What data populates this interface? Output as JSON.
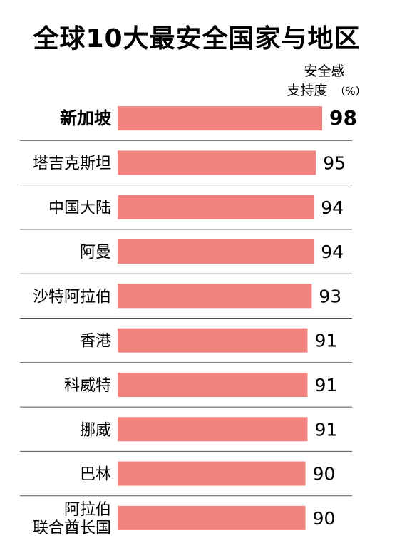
{
  "chart_data": {
    "type": "bar",
    "orientation": "horizontal",
    "title": "全球10大最安全国家与地区",
    "value_label_lines": [
      "安全感",
      "支持度"
    ],
    "value_unit": "（%）",
    "categories": [
      [
        "新加坡"
      ],
      [
        "塔吉克斯坦"
      ],
      [
        "中国大陆"
      ],
      [
        "阿曼"
      ],
      [
        "沙特阿拉伯"
      ],
      [
        "香港"
      ],
      [
        "科威特"
      ],
      [
        "挪威"
      ],
      [
        "巴林"
      ],
      [
        "阿拉伯",
        "联合酋长国"
      ]
    ],
    "values": [
      98,
      95,
      94,
      94,
      93,
      91,
      91,
      91,
      90,
      90
    ],
    "highlight_index": 0,
    "bar_color": "#f2827d",
    "grid": false,
    "legend": "none"
  }
}
